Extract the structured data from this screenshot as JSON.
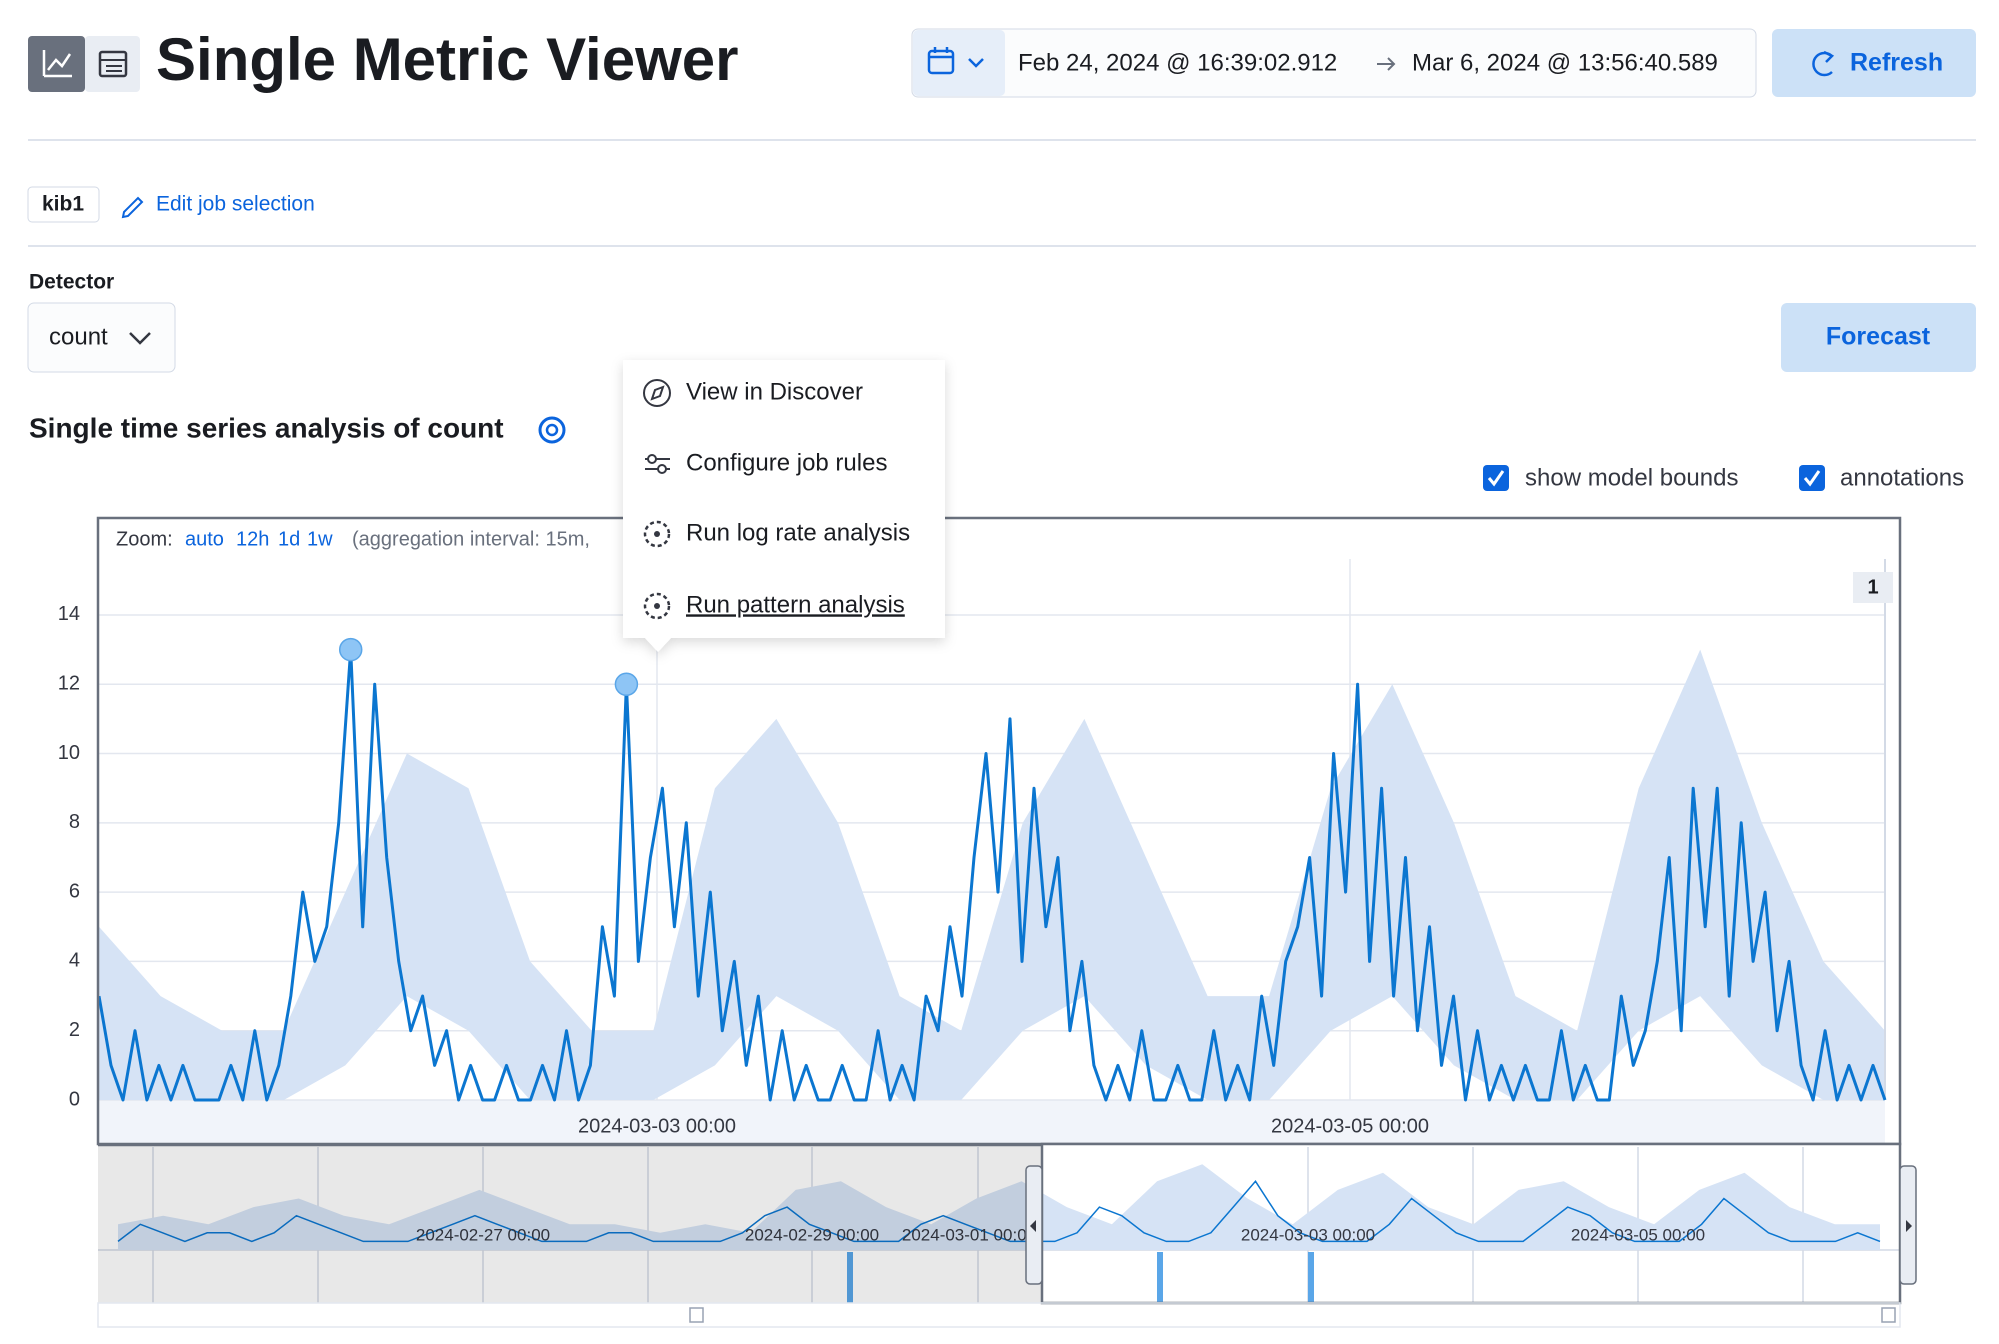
{
  "header": {
    "title": "Single Metric Viewer",
    "start": "Feb 24, 2024 @ 16:39:02.912",
    "end": "Mar 6, 2024 @ 13:56:40.589",
    "refresh": "Refresh"
  },
  "job": {
    "id": "kib1",
    "edit": "Edit job selection"
  },
  "detector": {
    "label": "Detector",
    "value": "count",
    "forecast": "Forecast"
  },
  "section_title": "Single time series analysis of count",
  "toggles": [
    "show model bounds",
    "annotations"
  ],
  "zoom": {
    "label": "Zoom:",
    "options": [
      "auto",
      "12h",
      "1d",
      "1w"
    ],
    "interval": "(aggregation interval: 15m,"
  },
  "menu": [
    "View in Discover",
    "Configure job rules",
    "Run log rate analysis",
    "Run pattern analysis"
  ],
  "chart_data": [
    {
      "type": "line",
      "ylim": [
        0,
        15.5
      ],
      "yticks": [
        0,
        2,
        4,
        6,
        8,
        10,
        12,
        14
      ],
      "grid": true,
      "x_labels": [
        "2024-03-03 00:00",
        "2024-03-05 00:00"
      ],
      "annotation": 1,
      "anomalies": [
        21,
        44
      ],
      "series": [
        {
          "color": "#0b76d0",
          "values": [
            3,
            1,
            0,
            2,
            0,
            1,
            0,
            1,
            0,
            0,
            0,
            1,
            0,
            2,
            0,
            1,
            3,
            6,
            4,
            5,
            8,
            13,
            5,
            12,
            7,
            4,
            2,
            3,
            1,
            2,
            0,
            1,
            0,
            0,
            1,
            0,
            0,
            1,
            0,
            2,
            0,
            1,
            5,
            3,
            12,
            4,
            7,
            9,
            5,
            8,
            3,
            6,
            2,
            4,
            1,
            3,
            0,
            2,
            0,
            1,
            0,
            0,
            1,
            0,
            0,
            2,
            0,
            1,
            0,
            3,
            2,
            5,
            3,
            7,
            10,
            6,
            11,
            4,
            9,
            5,
            7,
            2,
            4,
            1,
            0,
            1,
            0,
            2,
            0,
            0,
            1,
            0,
            0,
            2,
            0,
            1,
            0,
            3,
            1,
            4,
            5,
            7,
            3,
            10,
            6,
            12,
            4,
            9,
            3,
            7,
            2,
            5,
            1,
            3,
            0,
            2,
            0,
            1,
            0,
            1,
            0,
            0,
            2,
            0,
            1,
            0,
            0,
            3,
            1,
            2,
            4,
            7,
            2,
            9,
            5,
            9,
            3,
            8,
            4,
            6,
            2,
            4,
            1,
            0,
            2,
            0,
            1,
            0,
            1,
            0
          ]
        }
      ],
      "bounds": {
        "color": "#d6e3f5",
        "upper": [
          5,
          3,
          2,
          2,
          6,
          10,
          9,
          4,
          2,
          2,
          9,
          11,
          8,
          3,
          2,
          8,
          11,
          7,
          3,
          3,
          9,
          12,
          8,
          3,
          2,
          9,
          13,
          8,
          4,
          2
        ],
        "lower": [
          0,
          0,
          0,
          0,
          1,
          3,
          2,
          0,
          0,
          0,
          1,
          3,
          2,
          0,
          0,
          2,
          3,
          1,
          0,
          0,
          2,
          3,
          1,
          0,
          0,
          2,
          3,
          1,
          0,
          0
        ]
      }
    },
    {
      "type": "overview",
      "ylim": [
        0,
        12
      ],
      "x_labels": [
        "2024-02-27 00:00",
        "2024-02-29 00:00",
        "2024-03-01 00:00",
        "2024-03-03 00:00",
        "2024-03-05 00:00"
      ],
      "series": [
        {
          "color": "#0b76d0",
          "values": [
            1,
            3,
            2,
            1,
            2,
            2,
            1,
            2,
            4,
            3,
            2,
            1,
            1,
            1,
            2,
            3,
            4,
            3,
            2,
            1,
            1,
            1,
            2,
            2,
            1,
            1,
            1,
            1,
            2,
            4,
            5,
            3,
            2,
            1,
            1,
            1,
            3,
            4,
            3,
            2,
            1,
            1,
            1,
            2,
            5,
            4,
            2,
            1,
            1,
            2,
            5,
            8,
            4,
            2,
            1,
            1,
            1,
            3,
            6,
            4,
            2,
            1,
            1,
            1,
            3,
            5,
            4,
            2,
            1,
            1,
            1,
            3,
            6,
            4,
            2,
            1,
            1,
            1,
            2,
            1
          ]
        }
      ],
      "bounds": {
        "color": "#d6e3f5",
        "upper": [
          3,
          4,
          3,
          5,
          6,
          4,
          3,
          5,
          7,
          5,
          3,
          3,
          2,
          3,
          2,
          7,
          8,
          5,
          3,
          6,
          8,
          5,
          3,
          8,
          10,
          6,
          3,
          7,
          9,
          5,
          3,
          7,
          8,
          5,
          3,
          7,
          9,
          5,
          3,
          3
        ]
      }
    }
  ]
}
